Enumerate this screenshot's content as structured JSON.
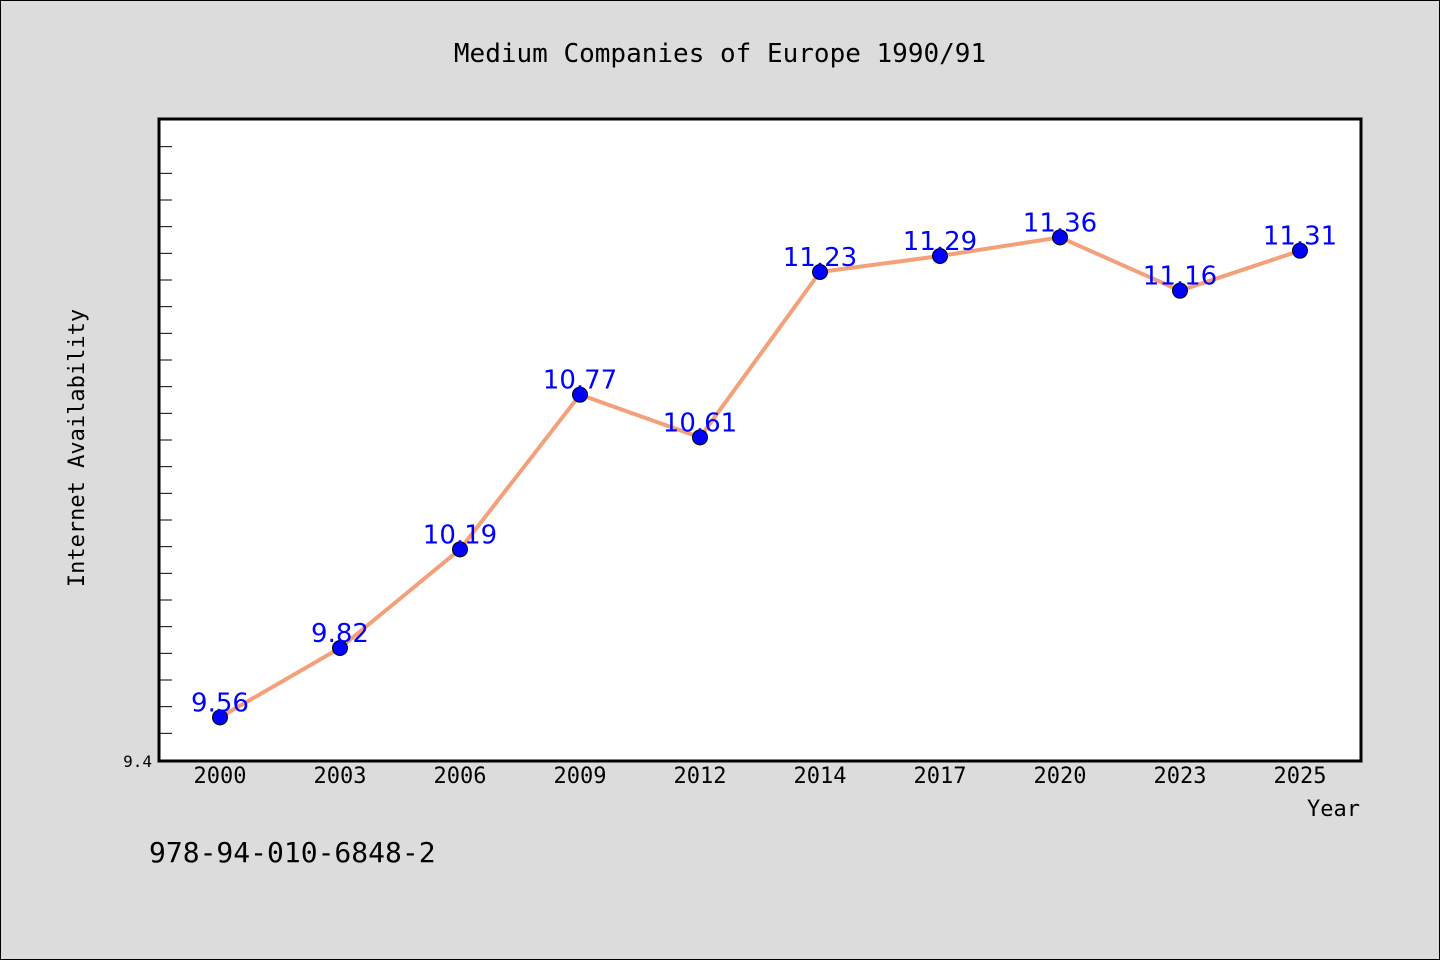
{
  "chart_data": {
    "type": "line",
    "title": "Medium Companies of Europe 1990/91",
    "xlabel": "Year",
    "ylabel": "Internet Availability",
    "categories": [
      "2000",
      "2003",
      "2006",
      "2009",
      "2012",
      "2014",
      "2017",
      "2020",
      "2023",
      "2025"
    ],
    "series": [
      {
        "values": [
          9.56,
          9.82,
          10.19,
          10.77,
          10.61,
          11.23,
          11.29,
          11.36,
          11.16,
          11.31
        ],
        "labels": [
          "9.56",
          "9.82",
          "10.19",
          "10.77",
          "10.61",
          "11.23",
          "11.29",
          "11.36",
          "11.16",
          "11.31"
        ],
        "line_color": "#f4a07a",
        "marker_color": "#0000ff"
      }
    ],
    "ylim": [
      9.4,
      11.8
    ],
    "yticks_labeled": [
      "9.4"
    ],
    "grid": false,
    "legend": "none"
  },
  "footer": {
    "isbn": "978-94-010-6848-2"
  },
  "colors": {
    "background": "#dcdcdc",
    "plot_background": "#ffffff",
    "data_label": "#0000ff"
  }
}
